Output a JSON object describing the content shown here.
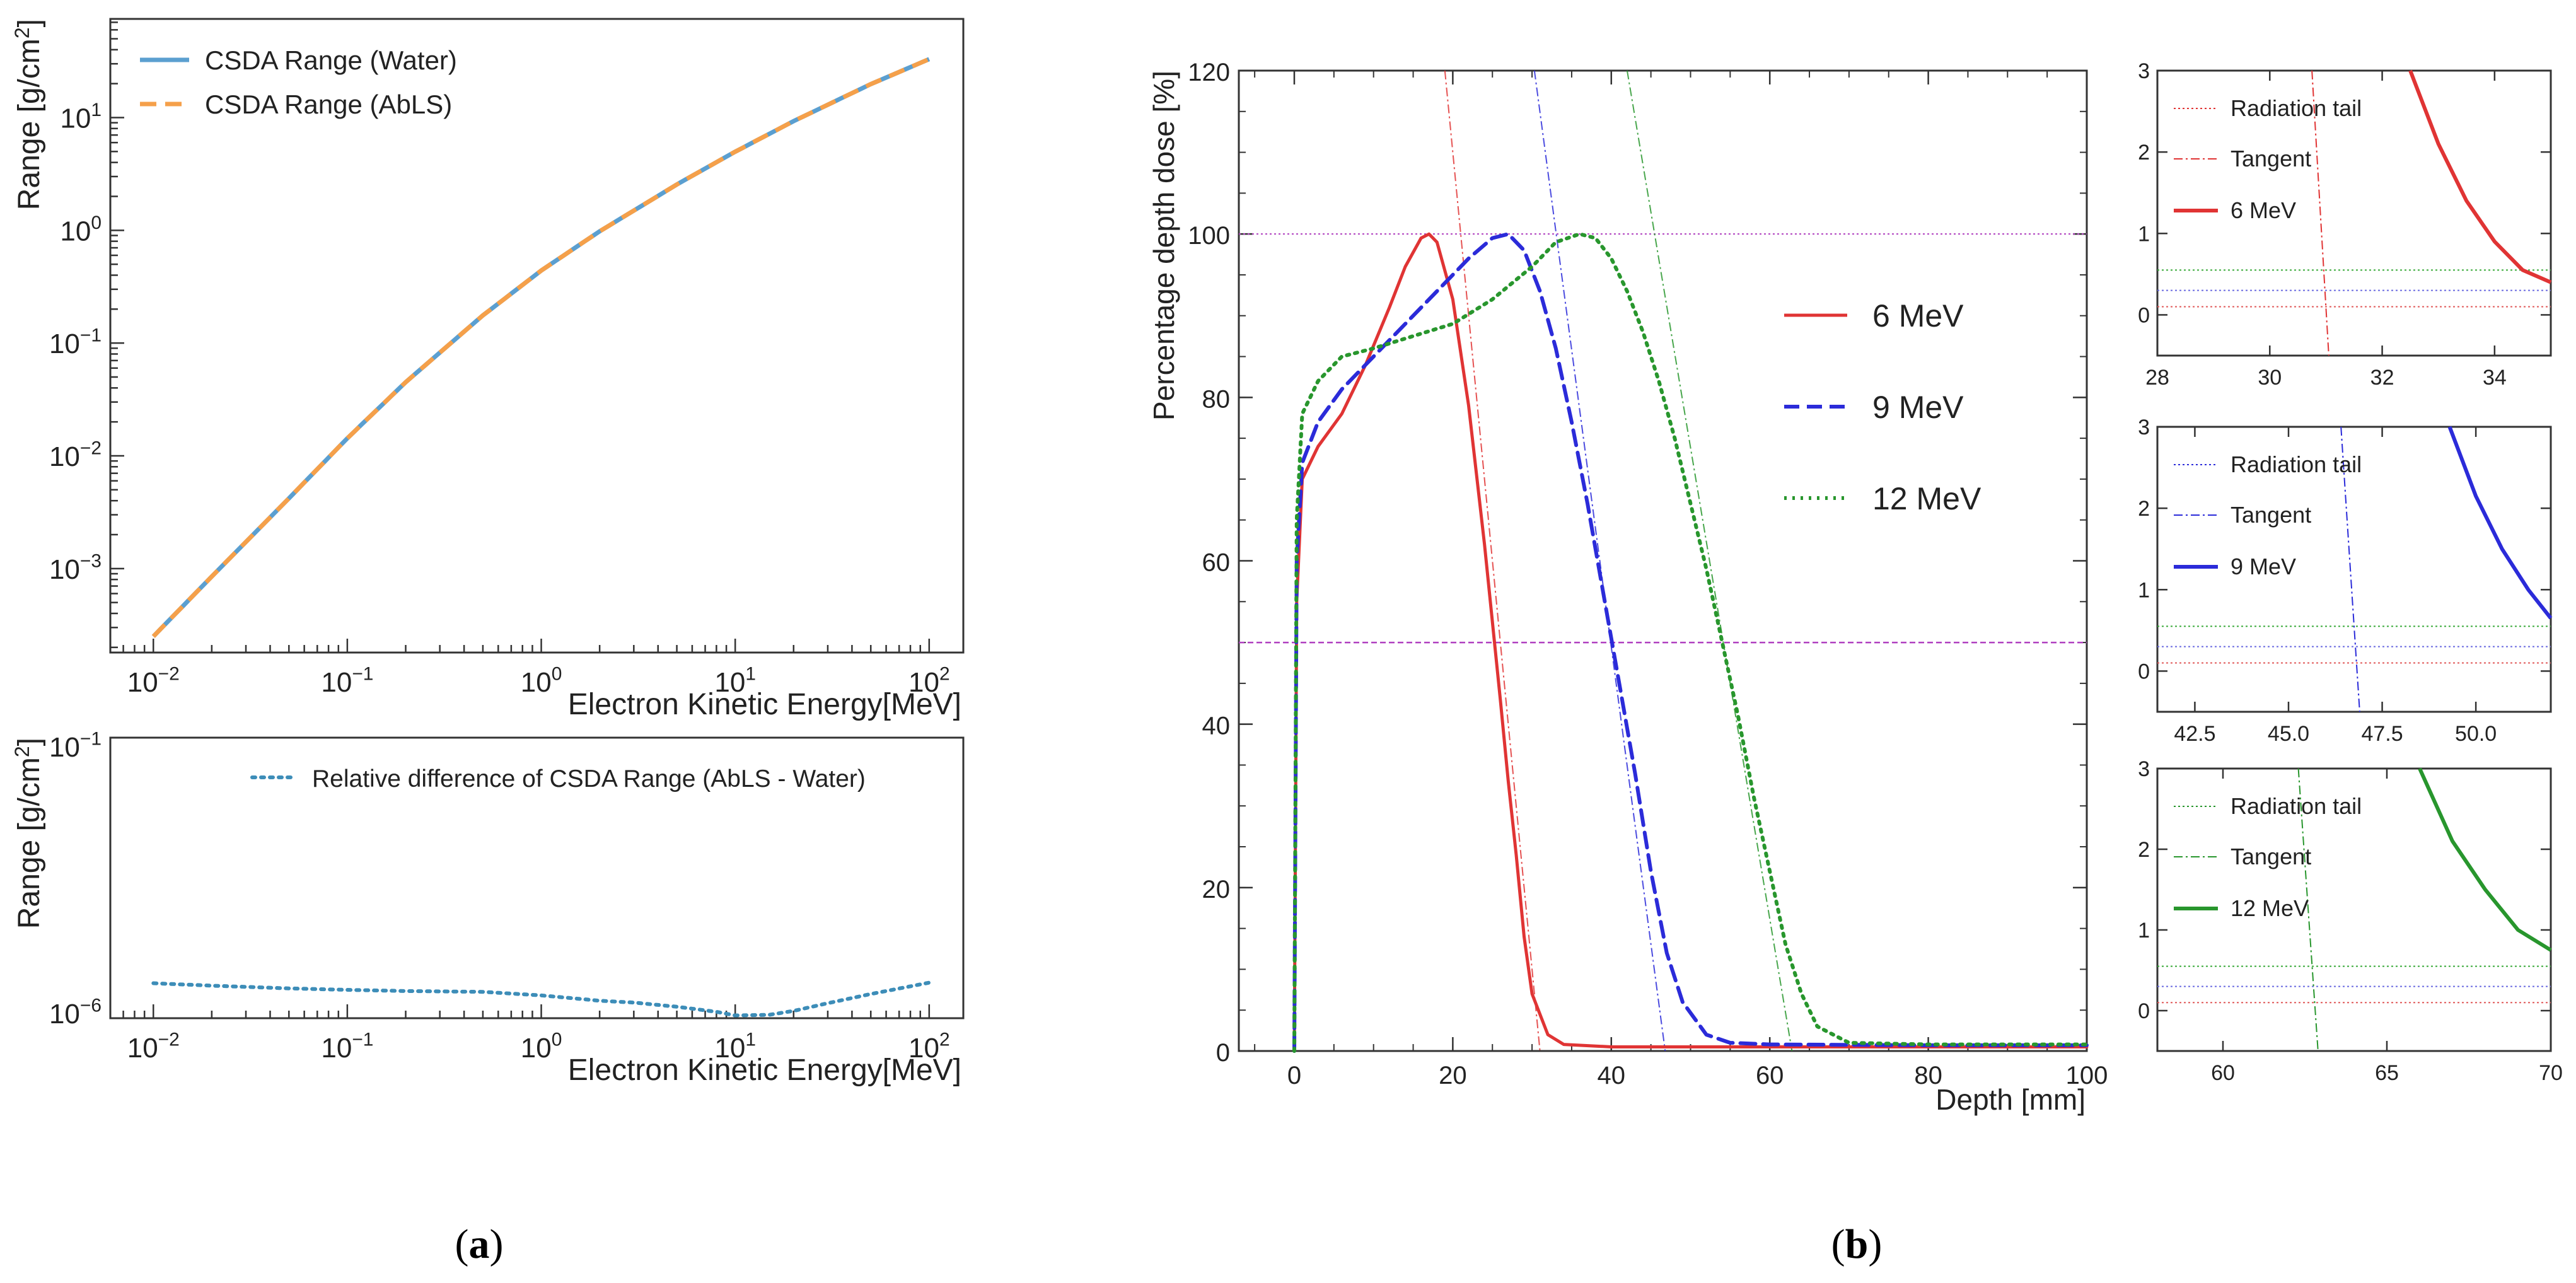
{
  "panel_labels": {
    "a": "(a)",
    "b": "(b)"
  },
  "colors": {
    "water": "#5b9fd0",
    "abls": "#f5a04a",
    "reldiff": "#3d8db8",
    "mev6": "#e03434",
    "mev9": "#2b2bd9",
    "mev12": "#28962d",
    "radtail_red": "#e05a5a",
    "radtail_green": "#3aaa3a",
    "radtail_blue": "#6a6ae0",
    "magenta": "#b040c0"
  },
  "chart_data": [
    {
      "id": "a-top",
      "type": "line",
      "xscale": "log",
      "yscale": "log",
      "xlim": [
        0.006,
        150
      ],
      "ylim": [
        0.00018,
        75
      ],
      "xlabel": "Electron Kinetic Energy[MeV]",
      "ylabel": "Range [g/cm²]",
      "ylabel_main": "Range [g/cm",
      "ylabel_sup": "2",
      "ylabel_end": "]",
      "xticks": [
        {
          "value": 0.01,
          "base": "10",
          "exp": "−2"
        },
        {
          "value": 0.1,
          "base": "10",
          "exp": "−1"
        },
        {
          "value": 1,
          "base": "10",
          "exp": "0"
        },
        {
          "value": 10,
          "base": "10",
          "exp": "1"
        },
        {
          "value": 100,
          "base": "10",
          "exp": "2"
        }
      ],
      "yticks": [
        {
          "value": 0.001,
          "base": "10",
          "exp": "−3"
        },
        {
          "value": 0.01,
          "base": "10",
          "exp": "−2"
        },
        {
          "value": 0.1,
          "base": "10",
          "exp": "−1"
        },
        {
          "value": 1,
          "base": "10",
          "exp": "0"
        },
        {
          "value": 10,
          "base": "10",
          "exp": "1"
        }
      ],
      "legend": {
        "location": "top-left",
        "entries": [
          "CSDA Range (Water)",
          "CSDA Range (AbLS)"
        ]
      },
      "series": [
        {
          "name": "CSDA Range (Water)",
          "style": "solid",
          "x": [
            0.01,
            0.02,
            0.05,
            0.1,
            0.2,
            0.5,
            1,
            2,
            5,
            10,
            20,
            50,
            100
          ],
          "y": [
            0.00025,
            0.00085,
            0.0042,
            0.0143,
            0.045,
            0.176,
            0.44,
            0.98,
            2.55,
            4.98,
            9.3,
            19.8,
            33
          ]
        },
        {
          "name": "CSDA Range (AbLS)",
          "style": "dashed",
          "x": [
            0.01,
            0.02,
            0.05,
            0.1,
            0.2,
            0.5,
            1,
            2,
            5,
            10,
            20,
            50,
            100
          ],
          "y": [
            0.00025,
            0.00085,
            0.0042,
            0.0143,
            0.045,
            0.176,
            0.44,
            0.98,
            2.55,
            4.98,
            9.3,
            19.8,
            33
          ]
        }
      ]
    },
    {
      "id": "a-bottom",
      "type": "line",
      "xscale": "log",
      "yscale": "log",
      "xlim": [
        0.006,
        150
      ],
      "ylim": [
        1e-06,
        0.1
      ],
      "xlabel": "Electron Kinetic Energy[MeV]",
      "ylabel_main": "Range [g/cm",
      "ylabel_sup": "2",
      "ylabel_end": "]",
      "xticks": [
        {
          "value": 0.01,
          "base": "10",
          "exp": "−2"
        },
        {
          "value": 0.1,
          "base": "10",
          "exp": "−1"
        },
        {
          "value": 1,
          "base": "10",
          "exp": "0"
        },
        {
          "value": 10,
          "base": "10",
          "exp": "1"
        },
        {
          "value": 100,
          "base": "10",
          "exp": "2"
        }
      ],
      "yticks": [
        {
          "value": 1e-06,
          "base": "10",
          "exp": "−6"
        },
        {
          "value": 0.1,
          "base": "10",
          "exp": "−1"
        }
      ],
      "legend": {
        "location": "top-right",
        "entries": [
          "Relative difference of CSDA Range (AbLS - Water)"
        ]
      },
      "series": [
        {
          "name": "Relative difference of CSDA Range (AbLS - Water)",
          "style": "dotted",
          "x": [
            0.01,
            0.02,
            0.05,
            0.1,
            0.2,
            0.5,
            1,
            2,
            3,
            5,
            8,
            10,
            15,
            20,
            30,
            50,
            100
          ],
          "y": [
            4.2e-06,
            3.8e-06,
            3.4e-06,
            3.2e-06,
            3.05e-06,
            2.95e-06,
            2.55e-06,
            2.05e-06,
            1.9e-06,
            1.6e-06,
            1.3e-06,
            1.12e-06,
            1.15e-06,
            1.35e-06,
            1.85e-06,
            2.7e-06,
            4.3e-06
          ]
        }
      ]
    },
    {
      "id": "b-main",
      "type": "line",
      "xlim": [
        -7,
        100
      ],
      "ylim": [
        0,
        120
      ],
      "xlabel": "Depth [mm]",
      "ylabel": "Percentage depth dose [%]",
      "xticks": [
        0,
        20,
        40,
        60,
        80,
        100
      ],
      "yticks": [
        0,
        20,
        40,
        60,
        80,
        100,
        120
      ],
      "legend": {
        "location": "center-right",
        "entries": [
          "6 MeV",
          "9 MeV",
          "12 MeV"
        ]
      },
      "hlines": [
        {
          "y": 100,
          "style": "dotted"
        },
        {
          "y": 50,
          "style": "dashed"
        }
      ],
      "tangents": [
        {
          "series": "6 MeV",
          "x": [
            19,
            31
          ],
          "y": [
            120,
            0
          ]
        },
        {
          "series": "9 MeV",
          "x": [
            30.3,
            46.8
          ],
          "y": [
            120,
            0
          ]
        },
        {
          "series": "12 MeV",
          "x": [
            42,
            62.8
          ],
          "y": [
            120,
            0
          ]
        }
      ],
      "series": [
        {
          "name": "6 MeV",
          "style": "solid",
          "x": [
            0,
            0.3,
            1,
            3,
            6,
            9,
            12,
            14,
            16,
            17,
            18,
            20,
            22,
            24,
            26,
            27,
            28,
            29,
            30,
            32,
            34,
            40,
            60,
            80,
            100
          ],
          "y": [
            0,
            55,
            70,
            74,
            78,
            84,
            91,
            96,
            99.5,
            100,
            99,
            92,
            79,
            62,
            43,
            33,
            24,
            14,
            7,
            2,
            0.8,
            0.5,
            0.5,
            0.5,
            0.5
          ]
        },
        {
          "name": "9 MeV",
          "style": "dashed",
          "x": [
            0,
            0.3,
            1,
            3,
            6,
            10,
            14,
            18,
            22,
            25,
            27,
            29,
            31,
            33,
            35,
            37,
            39,
            41,
            43,
            45,
            47,
            49,
            52,
            55,
            60,
            80,
            100
          ],
          "y": [
            0,
            60,
            72,
            77,
            81,
            85,
            89,
            93,
            97,
            99.5,
            100,
            98,
            93,
            86,
            77,
            67,
            56,
            45,
            34,
            22,
            12,
            6,
            2,
            1,
            0.8,
            0.7,
            0.7
          ]
        },
        {
          "name": "12 MeV",
          "style": "dotted",
          "x": [
            0,
            0.3,
            1,
            3,
            6,
            10,
            15,
            20,
            25,
            30,
            33,
            36,
            38,
            40,
            42,
            44,
            46,
            48,
            50,
            52,
            54,
            56,
            58,
            60,
            62,
            64,
            66,
            70,
            80,
            100
          ],
          "y": [
            0,
            65,
            78,
            82,
            85,
            86,
            87.5,
            89,
            92,
            96,
            99,
            100,
            99.5,
            97,
            93,
            88,
            82,
            75,
            67,
            59,
            50,
            41,
            31,
            22,
            13,
            7,
            3,
            1,
            0.8,
            0.8
          ]
        }
      ]
    },
    {
      "id": "b-inset-6",
      "type": "line",
      "xlim": [
        28,
        35
      ],
      "ylim": [
        -0.5,
        3
      ],
      "xticks": [
        28,
        30,
        32,
        34
      ],
      "yticks": [
        0,
        1,
        2,
        3
      ],
      "legend": {
        "location": "top-left",
        "entries": [
          "Radiation tail",
          "Tangent",
          "6 MeV"
        ]
      },
      "hlines": [
        {
          "y": 0.55,
          "color": "green"
        },
        {
          "y": 0.3,
          "color": "blue"
        },
        {
          "y": 0.1,
          "color": "red"
        }
      ],
      "tangent": {
        "x": [
          30.75,
          31.05
        ],
        "y": [
          3,
          -0.5
        ]
      },
      "series": [
        {
          "name": "6 MeV",
          "x": [
            32.5,
            33,
            33.5,
            34,
            34.5,
            35
          ],
          "y": [
            3,
            2.1,
            1.4,
            0.9,
            0.55,
            0.4
          ]
        }
      ]
    },
    {
      "id": "b-inset-9",
      "type": "line",
      "xlim": [
        41.5,
        52
      ],
      "ylim": [
        -0.5,
        3
      ],
      "xticks": [
        42.5,
        45.0,
        47.5,
        50.0
      ],
      "xtick_labels": [
        "42.5",
        "45.0",
        "47.5",
        "50.0"
      ],
      "yticks": [
        0,
        1,
        2,
        3
      ],
      "legend": {
        "location": "top-left",
        "entries": [
          "Radiation tail",
          "Tangent",
          "9 MeV"
        ]
      },
      "hlines": [
        {
          "y": 0.55,
          "color": "green"
        },
        {
          "y": 0.3,
          "color": "blue"
        },
        {
          "y": 0.1,
          "color": "red"
        }
      ],
      "tangent": {
        "x": [
          46.4,
          46.9
        ],
        "y": [
          3,
          -0.5
        ]
      },
      "series": [
        {
          "name": "9 MeV",
          "x": [
            49.3,
            50,
            50.7,
            51.4,
            52
          ],
          "y": [
            3,
            2.15,
            1.5,
            1.0,
            0.65
          ]
        }
      ]
    },
    {
      "id": "b-inset-12",
      "type": "line",
      "xlim": [
        58,
        70
      ],
      "ylim": [
        -0.5,
        3
      ],
      "xticks": [
        60,
        65,
        70
      ],
      "yticks": [
        0,
        1,
        2,
        3
      ],
      "legend": {
        "location": "top-left",
        "entries": [
          "Radiation tail",
          "Tangent",
          "12 MeV"
        ]
      },
      "hlines": [
        {
          "y": 0.55,
          "color": "green"
        },
        {
          "y": 0.3,
          "color": "blue"
        },
        {
          "y": 0.1,
          "color": "red"
        }
      ],
      "tangent": {
        "x": [
          62.3,
          62.9
        ],
        "y": [
          3,
          -0.5
        ]
      },
      "series": [
        {
          "name": "12 MeV",
          "x": [
            66,
            67,
            68,
            69,
            70
          ],
          "y": [
            3,
            2.1,
            1.5,
            1.0,
            0.75
          ]
        }
      ]
    }
  ]
}
